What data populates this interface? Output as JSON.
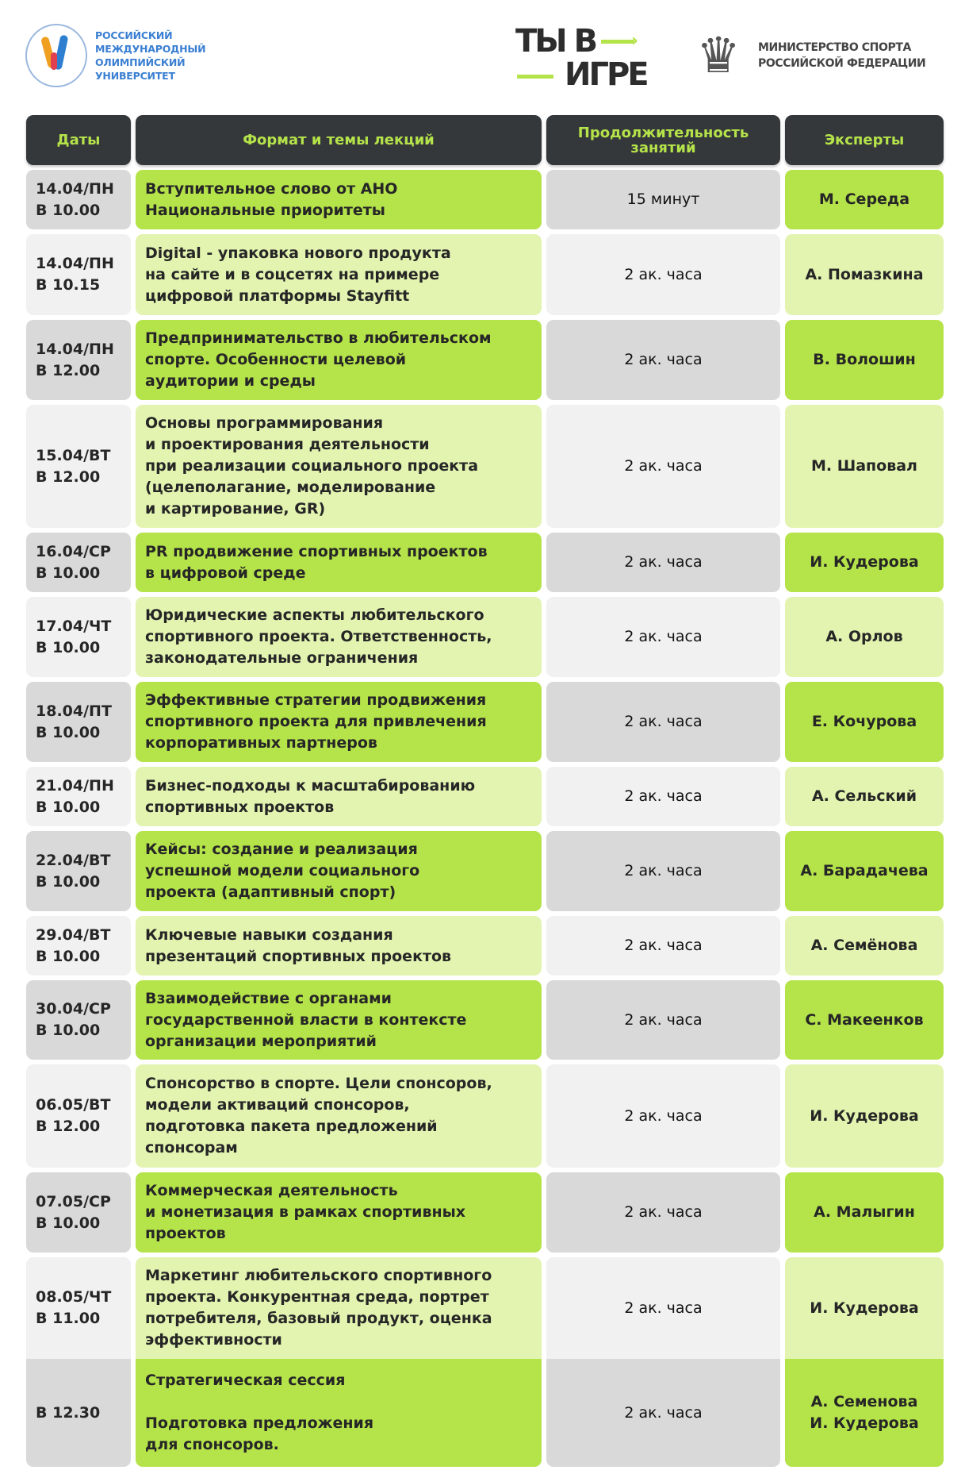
{
  "logos": {
    "university": {
      "lines": [
        "РОССИЙСКИЙ",
        "МЕЖДУНАРОДНЫЙ",
        "ОЛИМПИЙСКИЙ",
        "УНИВЕРСИТЕТ"
      ]
    },
    "game": {
      "line1": "ТЫ В",
      "line2": "ИГРЕ"
    },
    "ministry": {
      "line1": "МИНИСТЕРСТВО СПОРТА",
      "line2": "РОССИЙСКОЙ ФЕДЕРАЦИИ"
    }
  },
  "colors": {
    "header_bg": "#35383b",
    "header_text": "#b5e34a",
    "green": "#b5e34a",
    "light_green": "#e2f4b0",
    "gray": "#d9d9d9",
    "light_gray": "#f1f1f1"
  },
  "table": {
    "headers": [
      "Даты",
      "Формат и темы лекций",
      "Продолжительность занятий",
      "Эксперты"
    ],
    "rows": [
      {
        "date": "14.04/ПН\nВ 10.00",
        "topic": "Вступительное слово от АНО\nНациональные приоритеты",
        "duration": "15 минут",
        "expert": "М. Середа"
      },
      {
        "date": "14.04/ПН\nВ 10.15",
        "topic": "Digital - упаковка нового продукта\nна сайте и в соцсетях на примере\nцифровой платформы Stayfitt",
        "duration": "2 ак. часа",
        "expert": "А. Помазкина"
      },
      {
        "date": "14.04/ПН\nВ 12.00",
        "topic": "Предпринимательство в любительском\nспорте. Особенности целевой\nаудитории и среды",
        "duration": "2 ак. часа",
        "expert": "В. Волошин"
      },
      {
        "date": "15.04/ВТ\nВ 12.00",
        "topic": "Основы программирования\nи проектирования деятельности\nпри реализации социального проекта\n(целеполагание, моделирование\nи картирование,  GR)",
        "duration": "2 ак. часа",
        "expert": "М. Шаповал"
      },
      {
        "date": "16.04/СР\nВ 10.00",
        "topic": "PR продвижение спортивных проектов\nв цифровой среде",
        "duration": "2 ак. часа",
        "expert": "И. Кудерова"
      },
      {
        "date": "17.04/ЧТ\nВ 10.00",
        "topic": "Юридические аспекты любительского\nспортивного проекта. Ответственность,\nзаконодательные ограничения",
        "duration": "2 ак. часа",
        "expert": "А. Орлов"
      },
      {
        "date": "18.04/ПТ\nВ 10.00",
        "topic": "Эффективные стратегии продвижения\nспортивного проекта для привлечения\nкорпоративных партнеров",
        "duration": "2 ак. часа",
        "expert": "Е. Кочурова"
      },
      {
        "date": "21.04/ПН\nВ 10.00",
        "topic": "Бизнес-подходы к масштабированию\nспортивных проектов",
        "duration": "2 ак. часа",
        "expert": "А. Сельский"
      },
      {
        "date": "22.04/ВТ\nВ 10.00",
        "topic": "Кейсы: создание и реализация\nуспешной модели социального\nпроекта (адаптивный спорт)",
        "duration": "2 ак. часа",
        "expert": "А. Барадачева"
      },
      {
        "date": "29.04/ВТ\nВ 10.00",
        "topic": "Ключевые навыки создания\nпрезентаций спортивных проектов",
        "duration": "2 ак. часа",
        "expert": "А. Семёнова"
      },
      {
        "date": "30.04/СР\nВ 10.00",
        "topic": "Взаимодействие с органами\nгосударственной власти в контексте\nорганизации мероприятий",
        "duration": "2 ак. часа",
        "expert": "С. Макеенков"
      },
      {
        "date": "06.05/ВТ\nВ 12.00",
        "topic": "Спонсорство в спорте. Цели спонсоров,\nмодели активаций спонсоров,\nподготовка пакета предложений\nспонсорам",
        "duration": "2 ак. часа",
        "expert": "И. Кудерова"
      },
      {
        "date": "07.05/СР\nВ 10.00",
        "topic": "Коммерческая деятельность\nи монетизация в рамках спортивных\nпроектов",
        "duration": "2 ак. часа",
        "expert": "А. Малыгин"
      },
      {
        "date": "08.05/ЧТ\nВ 11.00",
        "topic": "Маркетинг любительского спортивного\nпроекта. Конкурентная среда, портрет\nпотребителя, базовый продукт, оценка\nэффективности",
        "duration": "2 ак. часа",
        "expert": "И. Кудерова"
      },
      {
        "date": "В 12.30",
        "topic": "Стратегическая сессия\n\nПодготовка предложения\nдля спонсоров.",
        "duration": "2 ак. часа",
        "expert": "А. Семенова\nИ. Кудерова"
      }
    ]
  }
}
